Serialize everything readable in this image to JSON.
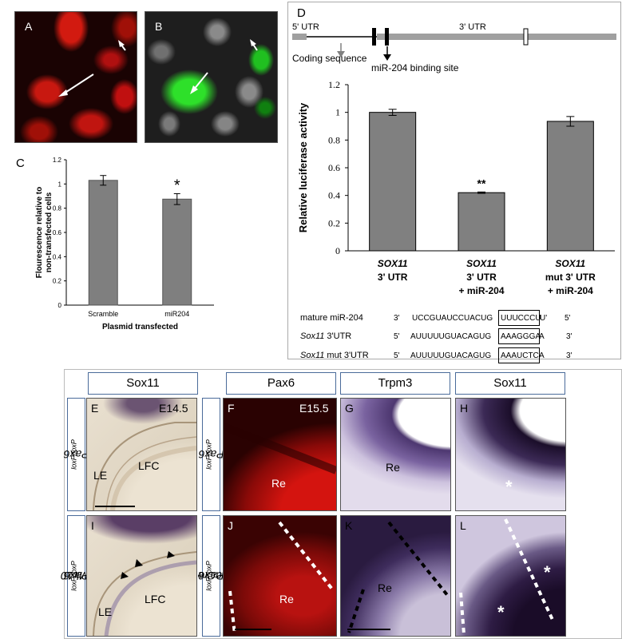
{
  "panels": {
    "a": "A",
    "b": "B",
    "c": "C",
    "d": "D",
    "e": "E",
    "f": "F",
    "g": "G",
    "h": "H",
    "i": "I",
    "j": "J",
    "k": "K",
    "l": "L"
  },
  "column_headers": [
    "Sox11",
    "Pax6",
    "Trpm3",
    "Sox11"
  ],
  "ages": {
    "e": "E14.5",
    "f": "E15.5"
  },
  "tissue_labels": {
    "le": "LE",
    "lfc": "LFC",
    "re": "Re"
  },
  "asterisk": "*",
  "genotypes": {
    "e_row1": {
      "base": "Pax6",
      "sup": "loxP/loxP"
    },
    "e_row2": {
      "base": "Pax6",
      "sup": "loxP/loxP",
      "suffix": ";Mlr10"
    },
    "f_row1": {
      "base": "Pax6",
      "sup": "loxP/loxP"
    },
    "f_row2": {
      "base": "Pax6",
      "sup": "loxP/loxP",
      "suffix": ";αCre"
    }
  },
  "gene_diagram": {
    "utr5": "5' UTR",
    "utr3": "3' UTR",
    "coding": "Coding sequence",
    "binding": "miR-204 binding site"
  },
  "sequences": [
    {
      "name": "mature miR-204",
      "italic": "",
      "rest": "",
      "left": "3'",
      "seq_a": "UCCGUAUCCUACUG",
      "seq_box": "UUUCCCU",
      "seq_b": "U'",
      "right": "5'"
    },
    {
      "name": "",
      "italic": "Sox11",
      "rest": " 3'UTR",
      "left": "5'",
      "seq_a": "AUUUUUGUACAGUG",
      "seq_box": "AAAGGGA",
      "seq_b": "A",
      "right": "3'"
    },
    {
      "name": "",
      "italic": "Sox11",
      "rest": " mut  3'UTR",
      "left": "5'",
      "seq_a": "AUUUUUGUACAGUG",
      "seq_box": "AAAUCTC",
      "seq_b": "A",
      "right": "3'"
    }
  ],
  "chart_data": [
    {
      "type": "bar",
      "panel": "C",
      "categories": [
        "Scramble",
        "miR204"
      ],
      "values": [
        1.03,
        0.875
      ],
      "errors": [
        0.04,
        0.045
      ],
      "significance": [
        "",
        "*"
      ],
      "ylim": [
        0,
        1.2
      ],
      "yticks": [
        "0",
        "0.2",
        "0.4",
        "0.6",
        "0.8",
        "1",
        "1.2"
      ],
      "xlabel": "Plasmid transfected",
      "ylabel_lines": [
        "Flourescence relative to",
        "non-transfected cells"
      ],
      "bar_color": "#7f7f7f"
    },
    {
      "type": "bar",
      "panel": "D",
      "categories": [
        [
          "SOX11",
          "3' UTR"
        ],
        [
          "SOX11",
          "3' UTR",
          "+ miR-204"
        ],
        [
          "SOX11",
          "mut 3' UTR",
          "+ miR-204"
        ]
      ],
      "values": [
        1.0,
        0.42,
        0.935
      ],
      "errors": [
        0.022,
        0.005,
        0.035
      ],
      "significance": [
        "",
        "**",
        ""
      ],
      "ylim": [
        0,
        1.2
      ],
      "yticks": [
        "0",
        "0.2",
        "0.4",
        "0.6",
        "0.8",
        "1",
        "1.2"
      ],
      "ylabel": "Relative luciferase activity",
      "bar_color": "#808080"
    }
  ]
}
